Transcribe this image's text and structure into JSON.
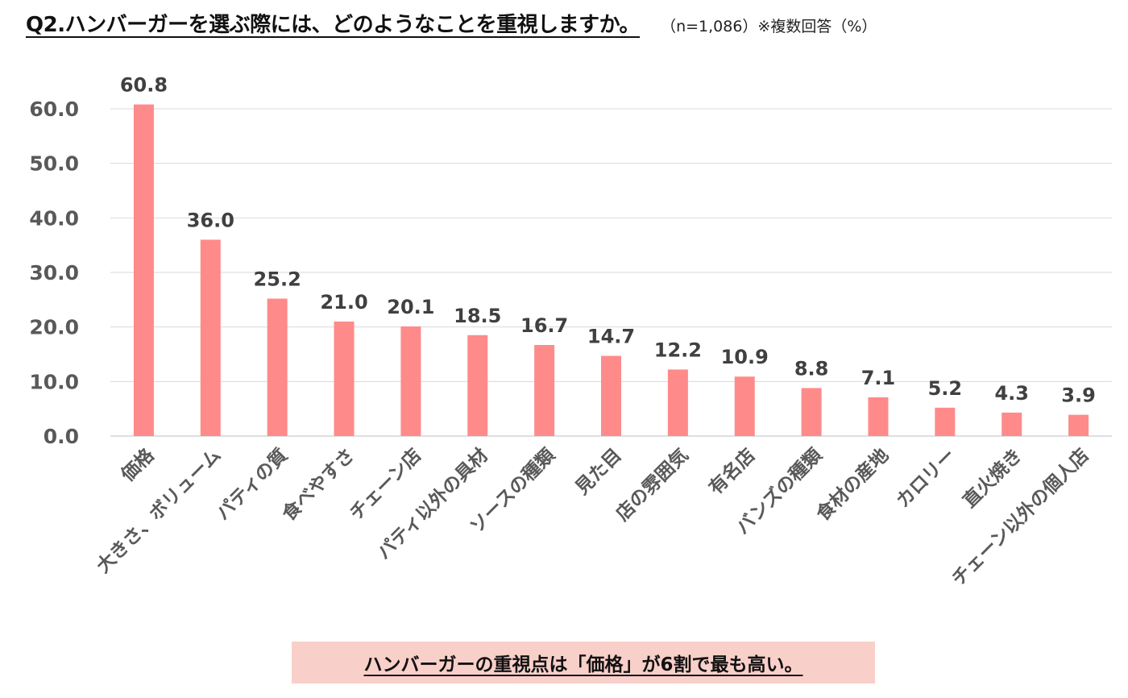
{
  "header": {
    "title": "Q2.ハンバーガーを選ぶ際には、どのようなことを重視しますか。",
    "note": "（n=1,086）※複数回答（%）"
  },
  "callout": {
    "text": "ハンバーガーの重視点は「価格」が6割で最も高い。",
    "background": "#f9cfc9"
  },
  "chart_data": {
    "type": "bar",
    "title": "Q2.ハンバーガーを選ぶ際には、どのようなことを重視しますか。",
    "xlabel": "",
    "ylabel": "",
    "ylim": [
      0,
      60
    ],
    "yticks": [
      0,
      10,
      20,
      30,
      40,
      50,
      60
    ],
    "ytick_labels": [
      "0.0",
      "10.0",
      "20.0",
      "30.0",
      "40.0",
      "50.0",
      "60.0"
    ],
    "grid": true,
    "legend": "none",
    "bar_color": "#ff8a8a",
    "categories": [
      "価格",
      "大きさ、ボリューム",
      "パティの質",
      "食べやすさ",
      "チェーン店",
      "パティ以外の具材",
      "ソースの種類",
      "見た目",
      "店の雰囲気",
      "有名店",
      "バンズの種類",
      "食材の産地",
      "カロリー",
      "直火焼き",
      "チェーン以外の個人店"
    ],
    "values": [
      60.8,
      36.0,
      25.2,
      21.0,
      20.1,
      18.5,
      16.7,
      14.7,
      12.2,
      10.9,
      8.8,
      7.1,
      5.2,
      4.3,
      3.9
    ],
    "value_labels": [
      "60.8",
      "36.0",
      "25.2",
      "21.0",
      "20.1",
      "18.5",
      "16.7",
      "14.7",
      "12.2",
      "10.9",
      "8.8",
      "7.1",
      "5.2",
      "4.3",
      "3.9"
    ]
  }
}
